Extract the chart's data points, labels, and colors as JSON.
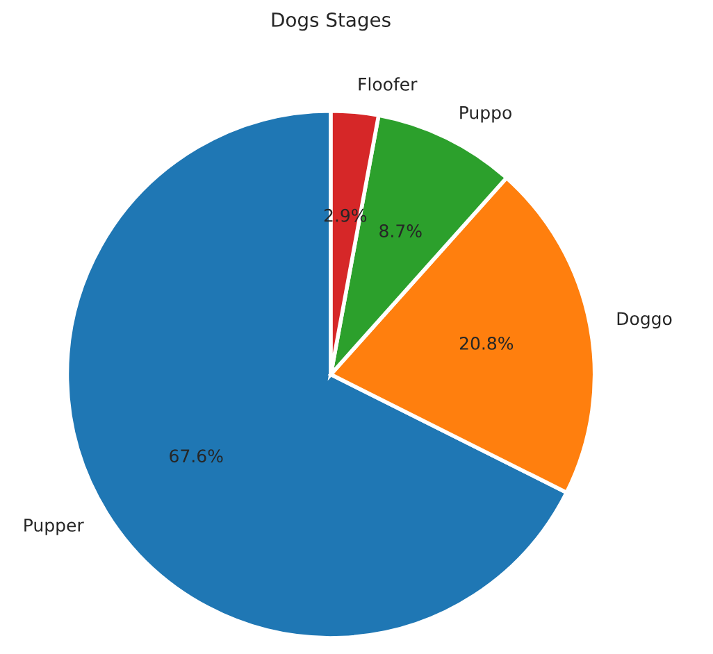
{
  "chart_data": {
    "type": "pie",
    "title": "Dogs Stages",
    "categories": [
      "Pupper",
      "Doggo",
      "Puppo",
      "Floofer"
    ],
    "values": [
      67.6,
      20.8,
      8.7,
      2.9
    ],
    "value_labels": [
      "67.6%",
      "20.8%",
      "8.7%",
      "2.9%"
    ],
    "colors": [
      "#1f77b4",
      "#ff7f0e",
      "#2ca02c",
      "#d62728"
    ]
  }
}
